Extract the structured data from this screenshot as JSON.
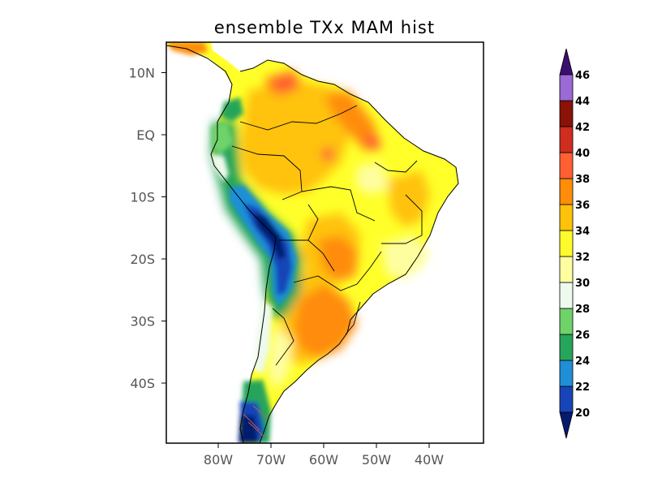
{
  "title": "ensemble TXx MAM hist",
  "map": {
    "region": "South America",
    "lon_range": [
      -90,
      -30
    ],
    "lat_range": [
      -50,
      15
    ],
    "lat_ticks": [
      {
        "lat": 10,
        "label": "10N"
      },
      {
        "lat": 0,
        "label": "EQ"
      },
      {
        "lat": -10,
        "label": "10S"
      },
      {
        "lat": -20,
        "label": "20S"
      },
      {
        "lat": -30,
        "label": "30S"
      },
      {
        "lat": -40,
        "label": "40S"
      }
    ],
    "lon_ticks": [
      {
        "lon": -80,
        "label": "80W"
      },
      {
        "lon": -70,
        "label": "70W"
      },
      {
        "lon": -60,
        "label": "60W"
      },
      {
        "lon": -50,
        "label": "50W"
      },
      {
        "lon": -40,
        "label": "40W"
      }
    ]
  },
  "colorbar": {
    "levels": [
      20,
      22,
      24,
      26,
      28,
      30,
      32,
      34,
      36,
      38,
      40,
      42,
      44,
      46
    ],
    "labels": [
      "20",
      "22",
      "24",
      "26",
      "28",
      "30",
      "32",
      "34",
      "36",
      "38",
      "40",
      "42",
      "44",
      "46"
    ],
    "under_color": "#061a6e",
    "over_color": "#3b0f6f",
    "colors": [
      "#1745b8",
      "#1f8fd8",
      "#27a55a",
      "#6fd36a",
      "#eefaee",
      "#fefea0",
      "#fffa2b",
      "#ffc20a",
      "#ff8c0a",
      "#ff5f32",
      "#cf2d20",
      "#8a1206",
      "#9b6ad6"
    ]
  }
}
